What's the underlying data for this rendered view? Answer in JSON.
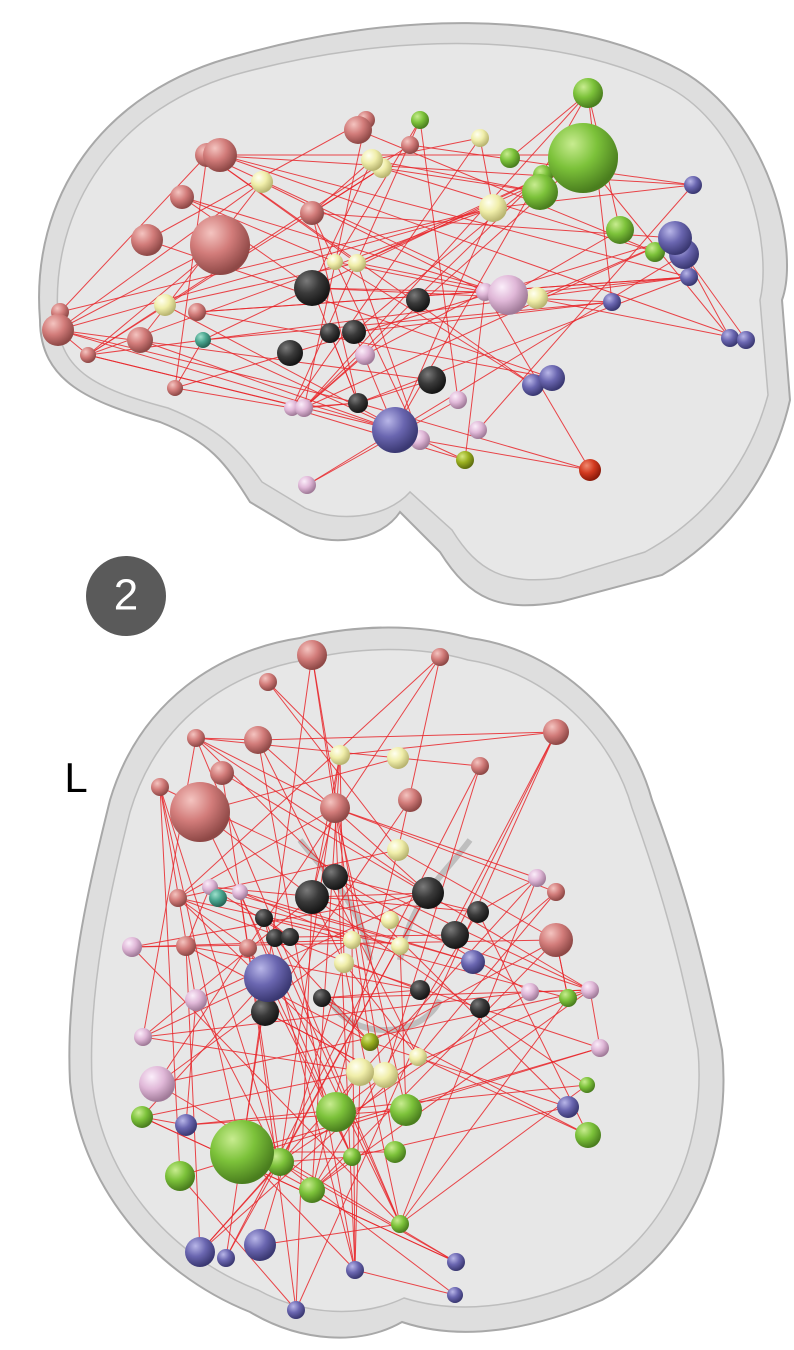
{
  "panel_badge": "2",
  "orientation_label": "L"
}
